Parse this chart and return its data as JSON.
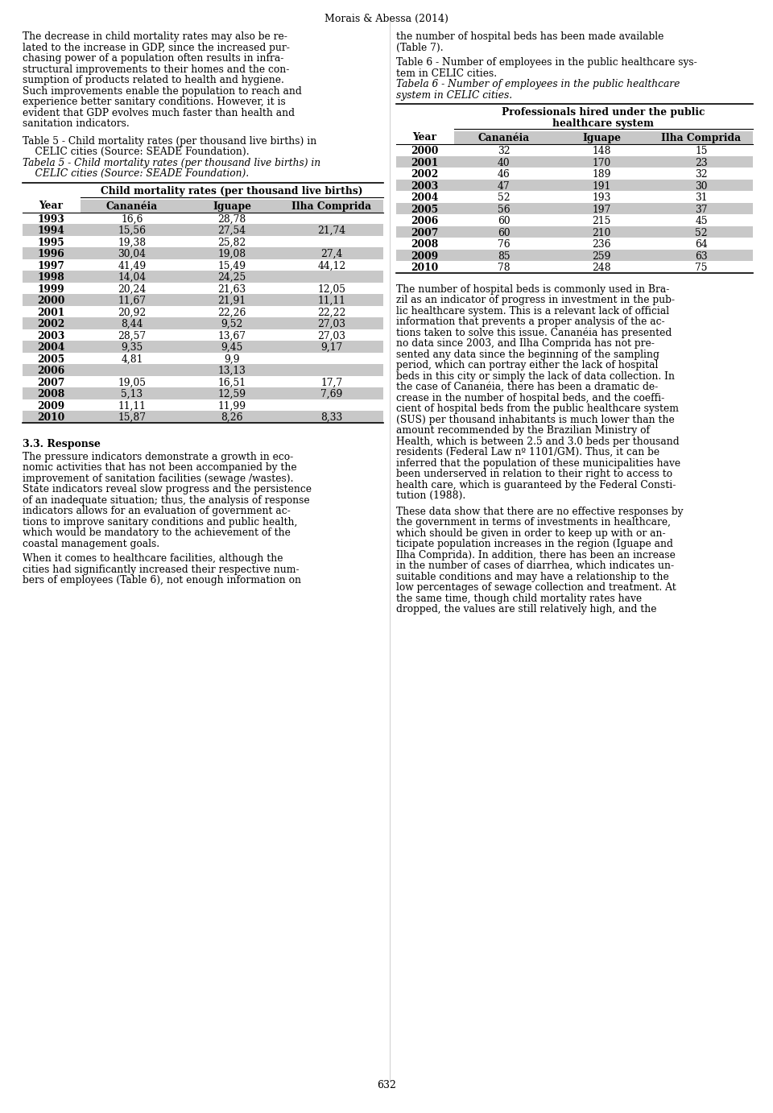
{
  "title": "Morais & Abessa (2014)",
  "page_number": "632",
  "left_col": {
    "para1": "The decrease in child mortality rates may also be related to the increase in GDP, since the increased purchasing power of a population often results in infrastructural improvements to their homes and the consumption of products related to health and hygiene. Such improvements enable the population to reach and experience better sanitary conditions. However, it is evident that GDP evolves much faster than health and sanitation indicators.",
    "table5_caption_en_line1": "Table 5 - Child mortality rates (per thousand live births) in",
    "table5_caption_en_line2": "CELIC cities (Source: SEADE Foundation).",
    "table5_caption_pt_line1": "Tabela 5 - Child mortality rates (per thousand live births) in",
    "table5_caption_pt_line2": "CELIC cities (Source: SEADE Foundation).",
    "table5_header_main": "Child mortality rates (per thousand live births)",
    "table5_header_year": "Year",
    "table5_header_cols": [
      "Cananéia",
      "Iguape",
      "Ilha Comprida"
    ],
    "table5_rows": [
      [
        "1993",
        "16,6",
        "28,78",
        ""
      ],
      [
        "1994",
        "15,56",
        "27,54",
        "21,74"
      ],
      [
        "1995",
        "19,38",
        "25,82",
        ""
      ],
      [
        "1996",
        "30,04",
        "19,08",
        "27,4"
      ],
      [
        "1997",
        "41,49",
        "15,49",
        "44,12"
      ],
      [
        "1998",
        "14,04",
        "24,25",
        ""
      ],
      [
        "1999",
        "20,24",
        "21,63",
        "12,05"
      ],
      [
        "2000",
        "11,67",
        "21,91",
        "11,11"
      ],
      [
        "2001",
        "20,92",
        "22,26",
        "22,22"
      ],
      [
        "2002",
        "8,44",
        "9,52",
        "27,03"
      ],
      [
        "2003",
        "28,57",
        "13,67",
        "27,03"
      ],
      [
        "2004",
        "9,35",
        "9,45",
        "9,17"
      ],
      [
        "2005",
        "4,81",
        "9,9",
        ""
      ],
      [
        "2006",
        "",
        "13,13",
        ""
      ],
      [
        "2007",
        "19,05",
        "16,51",
        "17,7"
      ],
      [
        "2008",
        "5,13",
        "12,59",
        "7,69"
      ],
      [
        "2009",
        "11,11",
        "11,99",
        ""
      ],
      [
        "2010",
        "15,87",
        "8,26",
        "8,33"
      ]
    ],
    "section33_title": "3.3. Response",
    "section33_para1": "The pressure indicators demonstrate a growth in economic activities that has not been accompanied by the improvement of sanitation facilities (sewage /wastes). State indicators reveal slow progress and the persistence of an inadequate situation; thus, the analysis of response indicators allows for an evaluation of government actions to improve sanitary conditions and public health, which would be mandatory to the achievement of the coastal management goals.",
    "section33_para2": "When it comes to healthcare facilities, although the cities had significantly increased their respective numbers of employees (Table 6), not enough information on"
  },
  "right_col": {
    "para1_line1": "the number of hospital beds has been made available",
    "para1_line2": "(Table 7).",
    "table6_caption_en_line1": "Table 6 - Number of employees in the public healthcare sys-",
    "table6_caption_en_line2": "tem in CELIC cities.",
    "table6_caption_pt_line1": "Tabela 6 - Number of employees in the public healthcare",
    "table6_caption_pt_line2": "system in CELIC cities.",
    "table6_header_main_line1": "Professionals hired under the public",
    "table6_header_main_line2": "healthcare system",
    "table6_header_year": "Year",
    "table6_header_cols": [
      "Cananéia",
      "Iguape",
      "Ilha Comprida"
    ],
    "table6_rows": [
      [
        "2000",
        "32",
        "148",
        "15"
      ],
      [
        "2001",
        "40",
        "170",
        "23"
      ],
      [
        "2002",
        "46",
        "189",
        "32"
      ],
      [
        "2003",
        "47",
        "191",
        "30"
      ],
      [
        "2004",
        "52",
        "193",
        "31"
      ],
      [
        "2005",
        "56",
        "197",
        "37"
      ],
      [
        "2006",
        "60",
        "215",
        "45"
      ],
      [
        "2007",
        "60",
        "210",
        "52"
      ],
      [
        "2008",
        "76",
        "236",
        "64"
      ],
      [
        "2009",
        "85",
        "259",
        "63"
      ],
      [
        "2010",
        "78",
        "248",
        "75"
      ]
    ],
    "para2": "The number of hospital beds is commonly used in Brazil as an indicator of progress in investment in the public healthcare system. This is a relevant lack of official information that prevents a proper analysis of the actions taken to solve this issue. Cananéia has presented no data since 2003, and Ilha Comprida has not presented any data since the beginning of the sampling period, which can portray either the lack of hospital beds in this city or simply the lack of data collection. In the case of Cananéia, there has been a dramatic decrease in the number of hospital beds, and the coefficient of hospital beds from the public healthcare system (SUS) per thousand inhabitants is much lower than the amount recommended by the Brazilian Ministry of Health, which is between 2.5 and 3.0 beds per thousand residents (Federal Law nº 1101/GM). Thus, it can be inferred that the population of these municipalities have been underserved in relation to their right to access to health care, which is guaranteed by the Federal Constitution (1988).",
    "para3": "These data show that there are no effective responses by the government in terms of investments in healthcare, which should be given in order to keep up with or anticipate population increases in the region (Iguape and Ilha Comprida). In addition, there has been an increase in the number of cases of diarrhea, which indicates unsuitable conditions and may have a relationship to the low percentages of sewage collection and treatment. At the same time, though child mortality rates have dropped, the values are still relatively high, and the"
  },
  "bg_color": "#ffffff",
  "text_color": "#000000",
  "table_stripe_color": "#c8c8c8"
}
